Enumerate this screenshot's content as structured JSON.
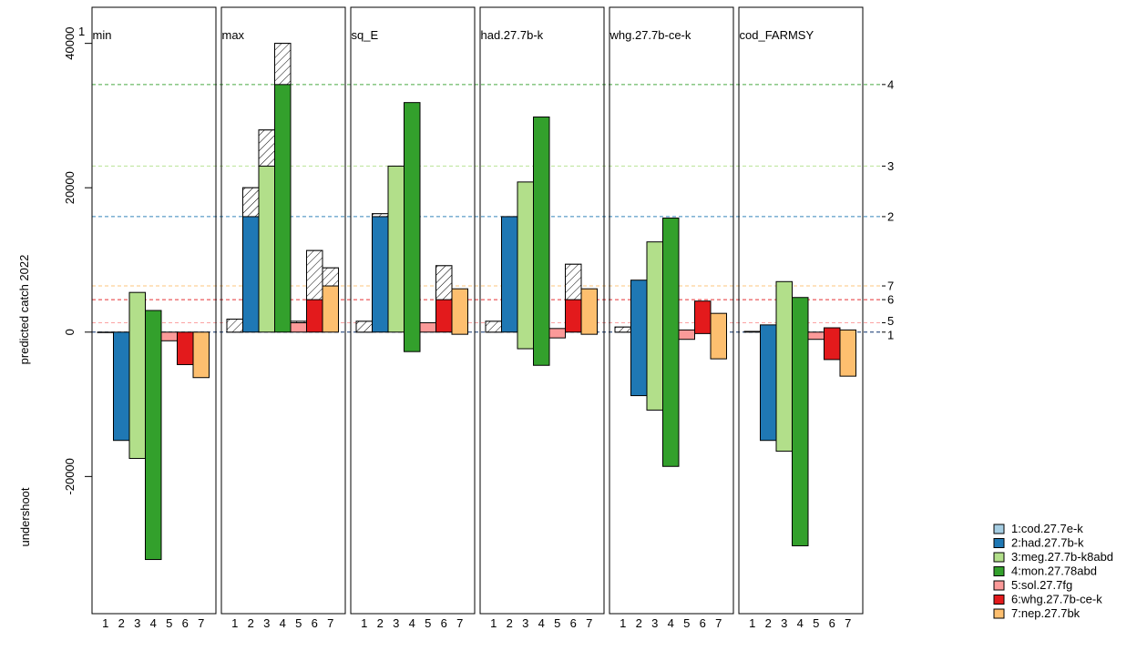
{
  "chart_data": {
    "type": "bar",
    "corner_label": "1",
    "ylabel": "predicted catch 2022",
    "ylabel_lower": "undershoot",
    "yticks": [
      -20000,
      0,
      20000,
      40000
    ],
    "ylim": [
      -39000,
      45000
    ],
    "x_categories": [
      "1",
      "2",
      "3",
      "4",
      "5",
      "6",
      "7"
    ],
    "stocks": [
      {
        "id": "1",
        "name": "1:cod.27.7e-k",
        "color": "#a6cee3",
        "tac": 0
      },
      {
        "id": "2",
        "name": "2:had.27.7b-k",
        "color": "#1f78b4",
        "tac": 16000
      },
      {
        "id": "3",
        "name": "3:meg.27.7b-k8abd",
        "color": "#b2df8a",
        "tac": 23000
      },
      {
        "id": "4",
        "name": "4:mon.27.78abd",
        "color": "#33a02c",
        "tac": 34300
      },
      {
        "id": "5",
        "name": "5:sol.27.7fg",
        "color": "#fb9a99",
        "tac": 1300
      },
      {
        "id": "6",
        "name": "6:whg.27.7b-ce-k",
        "color": "#e31a1c",
        "tac": 4500
      },
      {
        "id": "7",
        "name": "7:nep.27.7bk",
        "color": "#fdbf6f",
        "tac": 6400
      }
    ],
    "tac_line_labels": [
      "4",
      "3",
      "2",
      "7",
      "6",
      "5",
      "1"
    ],
    "panels": [
      {
        "title": "min",
        "bars": [
          {
            "base": 0,
            "top": 0
          },
          {
            "base": -15000,
            "top": 0
          },
          {
            "base": -17500,
            "top": 5500
          },
          {
            "base": -31500,
            "top": 3000
          },
          {
            "base": -1200,
            "top": 0
          },
          {
            "base": -4500,
            "top": 0
          },
          {
            "base": -6300,
            "top": 0
          }
        ]
      },
      {
        "title": "max",
        "bars": [
          {
            "base": 0,
            "top": 1800,
            "hatch": [
              0,
              1800
            ]
          },
          {
            "base": 0,
            "top": 20000,
            "hatch": [
              16000,
              20000
            ]
          },
          {
            "base": 0,
            "top": 28000,
            "hatch": [
              23000,
              28000
            ]
          },
          {
            "base": 0,
            "top": 40000,
            "hatch": [
              34300,
              40000
            ]
          },
          {
            "base": 0,
            "top": 1500,
            "hatch": [
              1300,
              1500
            ]
          },
          {
            "base": 0,
            "top": 11300,
            "hatch": [
              4500,
              11300
            ]
          },
          {
            "base": 0,
            "top": 8900,
            "hatch": [
              6400,
              8900
            ]
          }
        ]
      },
      {
        "title": "sq_E",
        "bars": [
          {
            "base": 0,
            "top": 1500,
            "hatch": [
              0,
              1500
            ]
          },
          {
            "base": 0,
            "top": 16400,
            "hatch": [
              16000,
              16400
            ]
          },
          {
            "base": 0,
            "top": 23000
          },
          {
            "base": -2700,
            "top": 31800
          },
          {
            "base": 0,
            "top": 1300
          },
          {
            "base": 0,
            "top": 9200,
            "hatch": [
              4500,
              9200
            ]
          },
          {
            "base": -300,
            "top": 6000
          }
        ]
      },
      {
        "title": "had.27.7b-k",
        "bars": [
          {
            "base": 0,
            "top": 1500,
            "hatch": [
              0,
              1500
            ]
          },
          {
            "base": 0,
            "top": 16000
          },
          {
            "base": -2300,
            "top": 20800
          },
          {
            "base": -4600,
            "top": 29800
          },
          {
            "base": -800,
            "top": 500
          },
          {
            "base": 0,
            "top": 9400,
            "hatch": [
              4500,
              9400
            ]
          },
          {
            "base": -300,
            "top": 6000
          }
        ]
      },
      {
        "title": "whg.27.7b-ce-k",
        "bars": [
          {
            "base": 0,
            "top": 700,
            "hatch": [
              0,
              700
            ]
          },
          {
            "base": -8800,
            "top": 7200
          },
          {
            "base": -10800,
            "top": 12500
          },
          {
            "base": -18600,
            "top": 15800
          },
          {
            "base": -1000,
            "top": 300
          },
          {
            "base": -200,
            "top": 4300
          },
          {
            "base": -3700,
            "top": 2600
          }
        ]
      },
      {
        "title": "cod_FARMSY",
        "bars": [
          {
            "base": 0,
            "top": 100
          },
          {
            "base": -15000,
            "top": 1000
          },
          {
            "base": -16500,
            "top": 7000
          },
          {
            "base": -29600,
            "top": 4800
          },
          {
            "base": -1000,
            "top": 0
          },
          {
            "base": -3800,
            "top": 600
          },
          {
            "base": -6100,
            "top": 300
          }
        ]
      }
    ]
  }
}
